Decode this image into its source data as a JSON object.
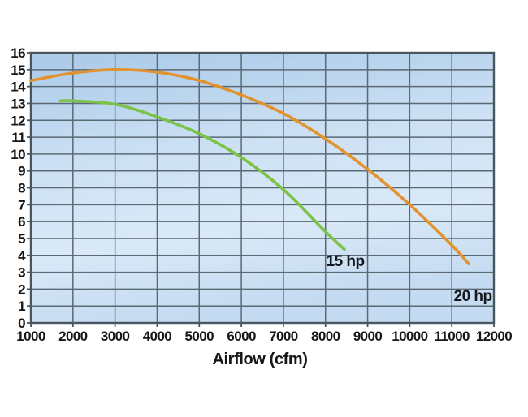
{
  "chart_data": {
    "type": "line",
    "title": "",
    "xlabel": "Airflow (cfm)",
    "ylabel": "",
    "xlim": [
      1000,
      12000
    ],
    "ylim": [
      0,
      16
    ],
    "x_ticks": [
      1000,
      2000,
      3000,
      4000,
      5000,
      6000,
      7000,
      8000,
      9000,
      10000,
      11000,
      12000
    ],
    "y_ticks": [
      0,
      1,
      2,
      3,
      4,
      5,
      6,
      7,
      8,
      9,
      10,
      11,
      12,
      13,
      14,
      15,
      16
    ],
    "grid": true,
    "legend_position": "inline-annotations",
    "series": [
      {
        "name": "20 hp",
        "color": "#e2922f",
        "points": [
          [
            1000,
            14.35
          ],
          [
            2000,
            14.8
          ],
          [
            3000,
            15.0
          ],
          [
            4000,
            14.85
          ],
          [
            5000,
            14.35
          ],
          [
            6000,
            13.5
          ],
          [
            7000,
            12.4
          ],
          [
            8000,
            10.9
          ],
          [
            9000,
            9.1
          ],
          [
            10000,
            7.0
          ],
          [
            11000,
            4.6
          ],
          [
            11400,
            3.5
          ]
        ]
      },
      {
        "name": "15 hp",
        "color": "#7cc247",
        "points": [
          [
            1700,
            13.15
          ],
          [
            2000,
            13.15
          ],
          [
            3000,
            12.95
          ],
          [
            4000,
            12.2
          ],
          [
            5000,
            11.2
          ],
          [
            6000,
            9.8
          ],
          [
            7000,
            7.9
          ],
          [
            8000,
            5.4
          ],
          [
            8450,
            4.35
          ]
        ]
      }
    ],
    "annotations": [
      {
        "text": "15 hp",
        "x": 8470,
        "y": 3.68
      },
      {
        "text": "20 hp",
        "x": 11500,
        "y": 1.6
      }
    ],
    "colors": {
      "plot_bg_top": "#a9c9e8",
      "plot_bg_mid1": "#cde1f4",
      "plot_bg_mid2": "#d9e9f8",
      "plot_bg_bottom": "#c5dbf1",
      "grid": "#5b6974",
      "border": "#49555f",
      "text": "#161616"
    }
  }
}
